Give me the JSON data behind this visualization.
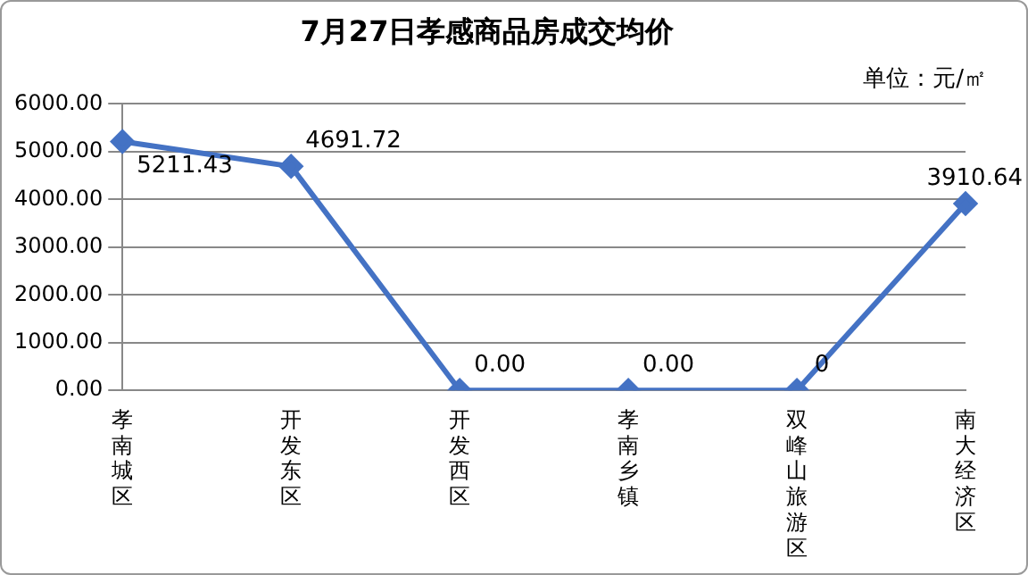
{
  "chart_data": {
    "type": "line",
    "title": "7月27日孝感商品房成交均价",
    "annotations": [
      "单位：元/㎡"
    ],
    "categories": [
      "孝南城区",
      "开发东区",
      "开发西区",
      "孝南乡镇",
      "双峰山旅游区",
      "南大经济区"
    ],
    "series": [
      {
        "color": "#4472c4",
        "values": [
          5211.43,
          4691.72,
          0,
          0,
          0,
          3910.64
        ],
        "value_labels": [
          "5211.43",
          "4691.72",
          "0.00",
          "0.00",
          "0",
          "3910.64"
        ]
      }
    ],
    "ylim": [
      0,
      6000
    ],
    "yticks": [
      {
        "value": 0,
        "label": "0.00"
      },
      {
        "value": 1000,
        "label": "1000.00"
      },
      {
        "value": 2000,
        "label": "2000.00"
      },
      {
        "value": 3000,
        "label": "3000.00"
      },
      {
        "value": 4000,
        "label": "4000.00"
      },
      {
        "value": 5000,
        "label": "5000.00"
      },
      {
        "value": 6000,
        "label": "6000.00"
      }
    ],
    "grid": "y",
    "marker": "diamond",
    "line_style": "solid",
    "legend": false
  }
}
